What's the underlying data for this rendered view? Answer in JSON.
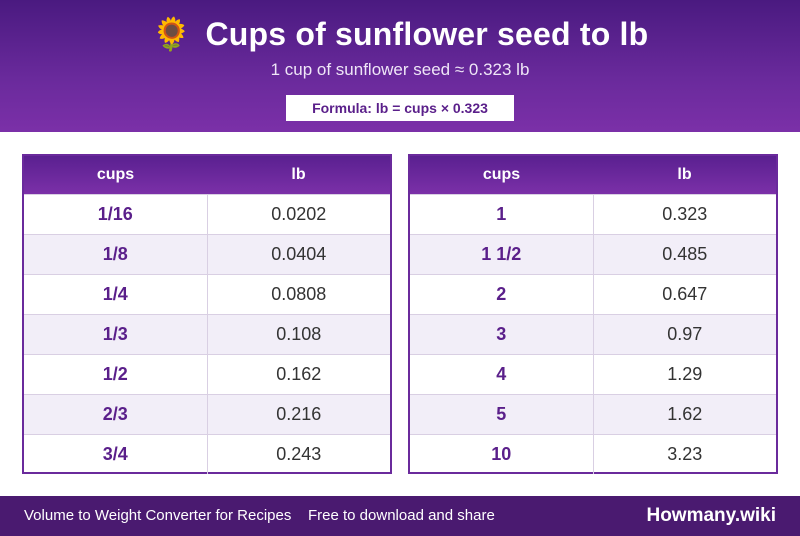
{
  "header": {
    "icon": "sunflower-icon",
    "icon_glyph": "🌻",
    "title": "Cups of sunflower seed to lb",
    "subtitle": "1 cup of sunflower seed ≈ 0.323 lb",
    "formula": "Formula: lb = cups × 0.323"
  },
  "tables": [
    {
      "headers": [
        "cups",
        "lb"
      ],
      "rows": [
        [
          "1/16",
          "0.0202"
        ],
        [
          "1/8",
          "0.0404"
        ],
        [
          "1/4",
          "0.0808"
        ],
        [
          "1/3",
          "0.108"
        ],
        [
          "1/2",
          "0.162"
        ],
        [
          "2/3",
          "0.216"
        ],
        [
          "3/4",
          "0.243"
        ]
      ]
    },
    {
      "headers": [
        "cups",
        "lb"
      ],
      "rows": [
        [
          "1",
          "0.323"
        ],
        [
          "1 1/2",
          "0.485"
        ],
        [
          "2",
          "0.647"
        ],
        [
          "3",
          "0.97"
        ],
        [
          "4",
          "1.29"
        ],
        [
          "5",
          "1.62"
        ],
        [
          "10",
          "3.23"
        ]
      ]
    }
  ],
  "footer": {
    "left_text": "Volume to Weight Converter for Recipes",
    "right_text": "Free to download and share",
    "brand": "Howmany.wiki"
  },
  "colors": {
    "primary": "#6a2a9c",
    "accent_text": "#5a1f8a",
    "footer_bg": "#4a1a70",
    "alt_row": "#f2eef8"
  }
}
